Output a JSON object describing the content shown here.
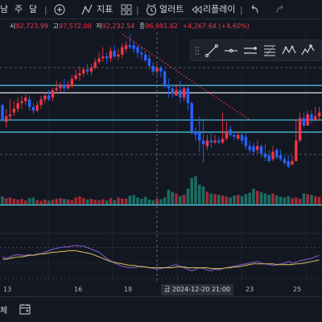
{
  "toolbar": {
    "intervals": [
      "남",
      "주",
      "달"
    ],
    "indicators_label": "지표",
    "alert_label": "얼러트",
    "replay_label": "리플레이"
  },
  "ohlc": {
    "open_label": "시",
    "open": "92,723.99",
    "high_label": "고",
    "high": "97,572.00",
    "low_label": "저",
    "low": "92,232.54",
    "close_label": "종",
    "close": "96,991.62",
    "change": "+4,267.64 (+4.60%)"
  },
  "drawing_tools": [
    "trend-line",
    "horizontal-ray",
    "parallel-channel",
    "fib-retracement",
    "xabcd-pattern",
    "elliott-wave"
  ],
  "xaxis": {
    "ticks": [
      "13",
      "16",
      "18",
      "23",
      "25"
    ],
    "crosshair_label": "금  2024-12-20   21:00"
  },
  "bottom": {
    "left_text": "체"
  },
  "colors": {
    "background": "#131722",
    "up": "#f23645",
    "down": "#2962ff",
    "volume_up": "#b7303c",
    "volume_down": "#1f7a6c",
    "cyan_line": "#4dd0e1",
    "white_line": "#e0e3eb",
    "rsi_line": "#7e57c2",
    "rsi_ma": "#c9b458"
  },
  "chart_data": {
    "type": "candlestick",
    "candles": [
      [
        61,
        53,
        62,
        52
      ],
      [
        52,
        55,
        59,
        49
      ],
      [
        55,
        56,
        64,
        53
      ],
      [
        57,
        59,
        63,
        55
      ],
      [
        59,
        62,
        65,
        57
      ],
      [
        62,
        63,
        66,
        59
      ],
      [
        63,
        65,
        68,
        61
      ],
      [
        64,
        60,
        66,
        58
      ],
      [
        60,
        58,
        62,
        56
      ],
      [
        58,
        61,
        63,
        57
      ],
      [
        61,
        64,
        66,
        59
      ],
      [
        64,
        66,
        68,
        62
      ],
      [
        66,
        64,
        69,
        63
      ],
      [
        65,
        69,
        70,
        63
      ],
      [
        69,
        70,
        74,
        67
      ],
      [
        70,
        72,
        73,
        68
      ],
      [
        72,
        70,
        75,
        68
      ],
      [
        70,
        72,
        74,
        69
      ],
      [
        71,
        75,
        77,
        70
      ],
      [
        75,
        77,
        80,
        74
      ],
      [
        77,
        78,
        82,
        74
      ],
      [
        78,
        80,
        81,
        76
      ],
      [
        80,
        79,
        83,
        77
      ],
      [
        79,
        81,
        83,
        77
      ],
      [
        81,
        84,
        86,
        80
      ],
      [
        84,
        86,
        89,
        83
      ],
      [
        86,
        87,
        92,
        84
      ],
      [
        87,
        86,
        89,
        83
      ],
      [
        86,
        90,
        92,
        84
      ],
      [
        90,
        87,
        93,
        86
      ],
      [
        87,
        88,
        91,
        85
      ],
      [
        88,
        92,
        94,
        86
      ],
      [
        91,
        93,
        95,
        89
      ],
      [
        93,
        92,
        99,
        91
      ],
      [
        93,
        91,
        95,
        89
      ],
      [
        92,
        89,
        93,
        86
      ],
      [
        89,
        88,
        92,
        85
      ],
      [
        88,
        85,
        90,
        84
      ],
      [
        86,
        82,
        88,
        80
      ],
      [
        82,
        79,
        84,
        77
      ],
      [
        79,
        81,
        83,
        77
      ],
      [
        81,
        79,
        82,
        76
      ],
      [
        79,
        72,
        80,
        70
      ],
      [
        72,
        70,
        75,
        65
      ],
      [
        70,
        67,
        72,
        65
      ],
      [
        66,
        69,
        72,
        66
      ],
      [
        69,
        65,
        74,
        62
      ],
      [
        65,
        70,
        71,
        63
      ],
      [
        70,
        62,
        71,
        58
      ],
      [
        62,
        47,
        63,
        45
      ],
      [
        47,
        45,
        49,
        42
      ],
      [
        46,
        42,
        55,
        36
      ],
      [
        42,
        40,
        54,
        30
      ],
      [
        39,
        42,
        45,
        37
      ],
      [
        42,
        41,
        46,
        38
      ],
      [
        41,
        42,
        45,
        40
      ],
      [
        42,
        41,
        44,
        40
      ],
      [
        41,
        43,
        57,
        40
      ],
      [
        43,
        47,
        52,
        42
      ],
      [
        48,
        45,
        50,
        44
      ],
      [
        45,
        44,
        47,
        42
      ],
      [
        43,
        45,
        47,
        42
      ],
      [
        45,
        42,
        47,
        40
      ],
      [
        44,
        39,
        46,
        37
      ],
      [
        39,
        37,
        42,
        35
      ],
      [
        39,
        36,
        41,
        34
      ],
      [
        37,
        39,
        42,
        35
      ],
      [
        39,
        35,
        40,
        33
      ],
      [
        35,
        33,
        40,
        31
      ],
      [
        34,
        31,
        37,
        30
      ],
      [
        32,
        36,
        39,
        31
      ],
      [
        37,
        33,
        38,
        32
      ],
      [
        34,
        32,
        37,
        31
      ],
      [
        32,
        30,
        34,
        29
      ],
      [
        31,
        28,
        34,
        27
      ],
      [
        29,
        31,
        34,
        29
      ],
      [
        31,
        42,
        53,
        31
      ],
      [
        42,
        54,
        57,
        41
      ],
      [
        54,
        50,
        57,
        49
      ],
      [
        50,
        56,
        58,
        50
      ],
      [
        56,
        53,
        58,
        51
      ],
      [
        53,
        55,
        60,
        52
      ],
      [
        55,
        57,
        60,
        53
      ]
    ],
    "volume": [
      25,
      20,
      22,
      18,
      16,
      18,
      14,
      20,
      22,
      14,
      12,
      16,
      13,
      15,
      18,
      20,
      18,
      16,
      14,
      22,
      25,
      20,
      16,
      18,
      15,
      14,
      17,
      13,
      20,
      14,
      22,
      19,
      18,
      27,
      29,
      22,
      18,
      24,
      16,
      14,
      18,
      17,
      22,
      45,
      38,
      34,
      26,
      30,
      48,
      80,
      85,
      60,
      55,
      40,
      34,
      32,
      30,
      28,
      25,
      22,
      28,
      30,
      26,
      32,
      36,
      48,
      42,
      38,
      34,
      30,
      34,
      28,
      24,
      22,
      26,
      20,
      22,
      18,
      34,
      32,
      30,
      26,
      24
    ],
    "rsi": [
      58,
      56,
      58,
      60,
      61,
      60,
      60,
      61,
      60,
      62,
      62,
      64,
      66,
      68,
      69,
      70,
      71,
      71,
      72,
      73,
      72,
      72,
      70,
      68,
      66,
      64,
      60,
      56,
      53,
      50,
      48,
      46,
      45,
      44,
      44,
      45,
      46,
      45,
      44,
      43,
      42,
      43,
      44,
      45,
      47,
      48,
      46,
      44,
      42,
      40,
      42,
      44,
      43,
      41,
      40,
      42,
      41,
      43,
      44,
      45,
      46,
      47,
      48,
      49,
      50,
      51,
      52,
      50,
      49,
      48,
      47,
      48,
      49,
      50,
      52,
      50,
      51,
      53,
      54,
      55,
      56,
      58,
      60
    ],
    "rsi_ma": [
      55,
      55,
      56,
      57,
      58,
      58,
      59,
      60,
      60,
      61,
      62,
      62,
      63,
      64,
      64,
      65,
      65,
      66,
      66,
      66,
      65,
      64,
      63,
      62,
      60,
      58,
      56,
      54,
      52,
      51,
      50,
      49,
      48,
      47,
      47,
      46,
      45,
      45,
      44,
      44,
      44,
      44,
      44,
      44,
      44,
      45,
      45,
      45,
      44,
      44,
      44,
      44,
      44,
      44,
      43,
      43,
      43,
      43,
      44,
      44,
      45,
      45,
      46,
      47,
      48,
      49,
      49,
      49,
      49,
      49,
      49,
      48,
      48,
      48,
      48,
      48,
      49,
      49,
      50,
      51,
      52,
      53,
      54
    ],
    "horizontal_lines": [
      {
        "price": 71.5,
        "color": "cyan"
      },
      {
        "price": 67.5,
        "color": "white"
      },
      {
        "price": 53.0,
        "color": "cyan"
      },
      {
        "price": 46.5,
        "color": "cyan"
      },
      {
        "price": 7.5,
        "color": "cyan"
      }
    ],
    "dashed_levels": [
      81,
      34.5
    ],
    "trendline": {
      "from": [
        31,
        99
      ],
      "to": [
        64,
        53
      ]
    },
    "crosshair_index": 40
  }
}
